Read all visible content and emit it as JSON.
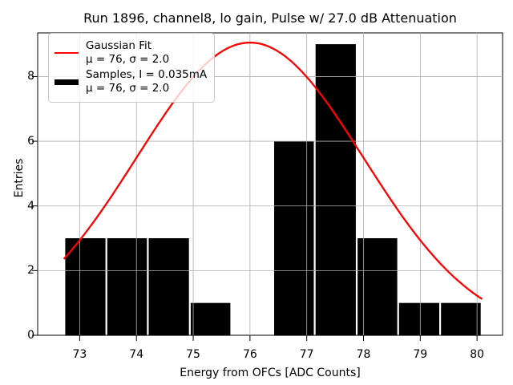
{
  "chart_data": {
    "type": "histogram+line",
    "title": "Run 1896, channel8, lo gain, Pulse w/ 27.0 dB Attenuation",
    "xlabel": "Energy from OFCs [ADC Counts]",
    "ylabel": "Entries",
    "x_ticks": [
      73,
      74,
      75,
      76,
      77,
      78,
      79,
      80
    ],
    "y_ticks": [
      0,
      2,
      4,
      6,
      8
    ],
    "xlim": [
      72.26,
      80.45
    ],
    "ylim": [
      0,
      9.35
    ],
    "grid": true,
    "grid_color": "#b0b0b0",
    "background_color": "#ffffff",
    "histogram": {
      "bin_edges": [
        72.73,
        73.47,
        74.2,
        74.94,
        75.67,
        76.41,
        77.14,
        77.88,
        78.61,
        79.35,
        80.08
      ],
      "counts": [
        3,
        3,
        3,
        1,
        0,
        6,
        9,
        3,
        1,
        1
      ],
      "color": "#000000"
    },
    "gaussian_fit": {
      "mu": 76,
      "sigma": 2.0,
      "amplitude": 9.05,
      "x_start": 72.73,
      "x_end": 80.08,
      "color": "#ff0000"
    },
    "legend": {
      "position": "upper left",
      "items": [
        {
          "swatch": "line",
          "color": "#ff0000",
          "line1": "Gaussian Fit",
          "line2": "μ = 76, σ = 2.0"
        },
        {
          "swatch": "patch",
          "color": "#000000",
          "line1": "Samples, I = 0.035mA",
          "line2": "μ = 76, σ = 2.0"
        }
      ]
    }
  }
}
